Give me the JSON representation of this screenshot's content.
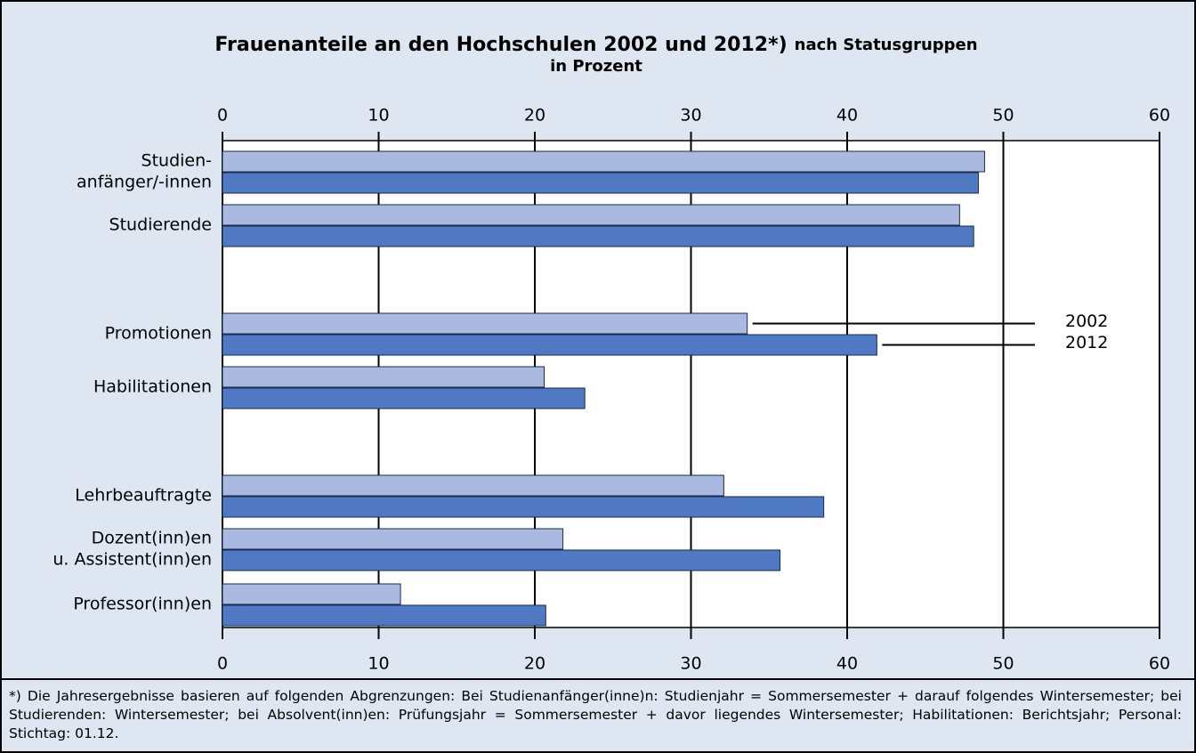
{
  "chart_data": {
    "type": "hbar",
    "title": "Frauenanteile an den Hochschulen 2002 und 2012*)",
    "title_suffix": "nach Statusgruppen",
    "subtitle": "in Prozent",
    "categories": [
      [
        "Studien-",
        "anfänger/-innen"
      ],
      [
        "Studierende"
      ],
      [
        "Promotionen"
      ],
      [
        "Habilitationen"
      ],
      [
        "Lehrbeauftragte"
      ],
      [
        "Dozent(inn)en",
        "u. Assistent(inn)en"
      ],
      [
        "Professor(inn)en"
      ]
    ],
    "series": [
      {
        "name": "2002",
        "color": "#aab9df",
        "values": [
          48.8,
          47.2,
          33.6,
          20.6,
          32.1,
          21.8,
          11.4
        ]
      },
      {
        "name": "2012",
        "color": "#4f79c3",
        "values": [
          48.4,
          48.1,
          41.9,
          23.2,
          38.5,
          35.7,
          20.7
        ]
      }
    ],
    "xlim": [
      0,
      60
    ],
    "xticks": [
      0,
      10,
      20,
      30,
      40,
      50,
      60
    ],
    "grid": true,
    "footnote": "*) Die Jahresergebnisse basieren auf folgenden Abgrenzungen: Bei Studienanfänger(inne)n: Studienjahr = Sommersemester + darauf folgendes Wintersemester; bei Studierenden: Wintersemester; bei Absolvent(inn)en: Prüfungsjahr = Sommersemester + davor liegendes Wintersemester; Habilitationen: Berichtsjahr; Personal: Stichtag: 01.12."
  }
}
